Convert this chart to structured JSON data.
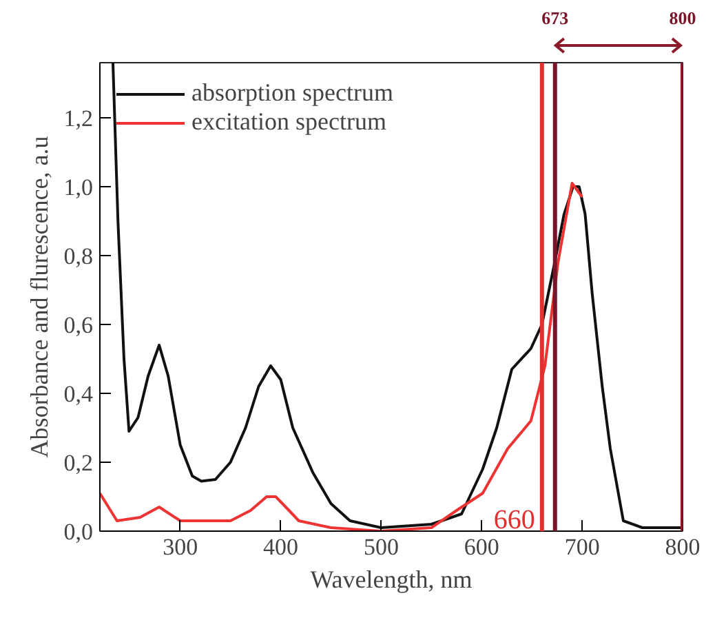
{
  "chart_data": {
    "type": "line",
    "xlabel": "Wavelength, nm",
    "ylabel": "Absorbance and flurescence, a.u",
    "xlim": [
      220,
      800
    ],
    "ylim": [
      0,
      1.36
    ],
    "xticks": [
      300,
      400,
      500,
      600,
      700,
      800
    ],
    "yticks": [
      {
        "value": 0,
        "label": "0,0"
      },
      {
        "value": 0.2,
        "label": "0,2"
      },
      {
        "value": 0.4,
        "label": "0,4"
      },
      {
        "value": 0.6,
        "label": "0,6"
      },
      {
        "value": 0.8,
        "label": "0,8"
      },
      {
        "value": 1.0,
        "label": "1,0"
      },
      {
        "value": 1.2,
        "label": "1,2"
      }
    ],
    "series": [
      {
        "name": "absorption spectrum",
        "color": "#111111",
        "x": [
          233,
          238,
          244,
          249,
          258,
          268,
          279,
          288,
          300,
          312,
          321,
          335,
          350,
          365,
          378,
          390,
          400,
          412,
          432,
          450,
          469,
          500,
          550,
          580,
          601,
          615,
          630,
          649,
          660,
          672,
          682,
          691,
          697,
          703,
          710,
          720,
          728,
          741,
          760,
          800
        ],
        "values": [
          1.36,
          0.9,
          0.5,
          0.29,
          0.33,
          0.45,
          0.54,
          0.45,
          0.25,
          0.16,
          0.145,
          0.15,
          0.2,
          0.3,
          0.42,
          0.48,
          0.44,
          0.3,
          0.17,
          0.08,
          0.03,
          0.01,
          0.02,
          0.05,
          0.18,
          0.3,
          0.47,
          0.53,
          0.6,
          0.77,
          0.92,
          1.0,
          1.0,
          0.92,
          0.69,
          0.42,
          0.24,
          0.03,
          0.01,
          0.01
        ]
      },
      {
        "name": "excitation spectrum",
        "color": "#ee3333",
        "x": [
          220,
          237,
          260,
          279,
          300,
          350,
          370,
          386,
          395,
          405,
          418,
          450,
          500,
          550,
          575,
          601,
          626,
          649,
          663,
          676,
          690,
          700
        ],
        "values": [
          0.11,
          0.03,
          0.04,
          0.07,
          0.03,
          0.03,
          0.06,
          0.1,
          0.1,
          0.07,
          0.03,
          0.01,
          0.0,
          0.01,
          0.06,
          0.11,
          0.24,
          0.32,
          0.48,
          0.78,
          1.01,
          0.97
        ]
      }
    ],
    "ref_lines": [
      {
        "axis": "x",
        "value": 660,
        "label": "660",
        "color": "#e03030"
      },
      {
        "axis": "x",
        "value": 673,
        "label": "673",
        "color": "#7a1428"
      },
      {
        "axis": "x",
        "value": 800,
        "label": "800",
        "color": "#8b1a2b"
      }
    ],
    "legend": "top left",
    "grid": false,
    "line_style": "solid",
    "marker": "none"
  }
}
